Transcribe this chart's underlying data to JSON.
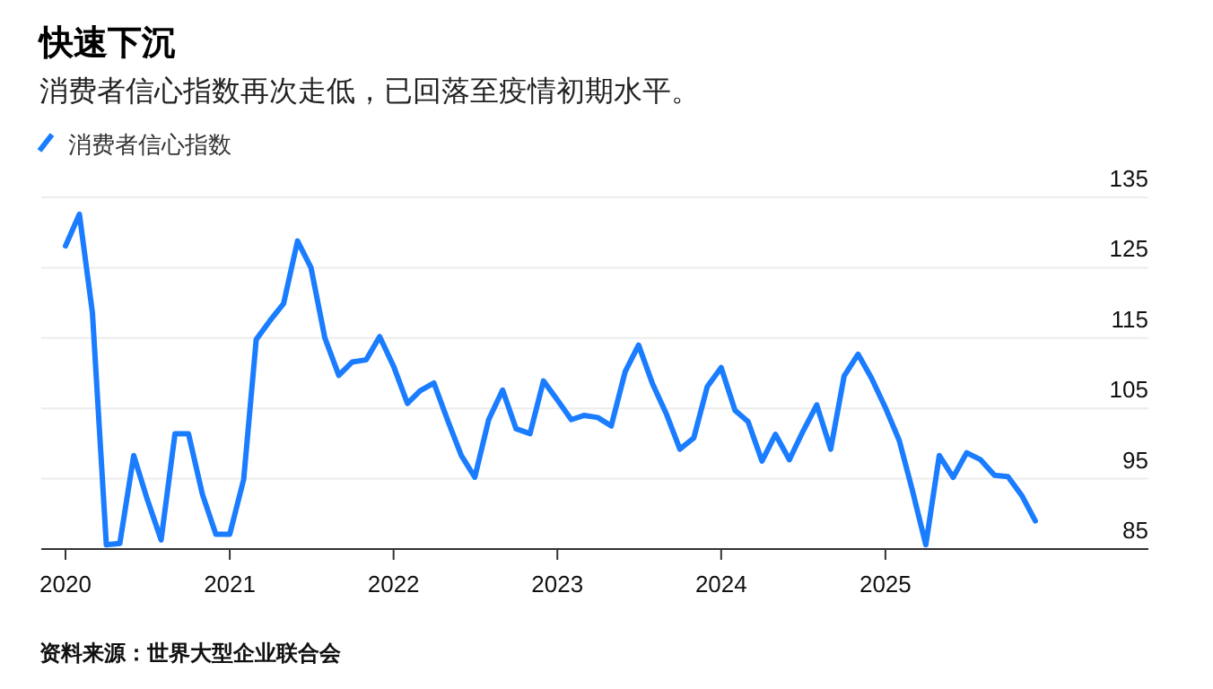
{
  "chart_data": {
    "type": "line",
    "title": "快速下沉",
    "subtitle": "消费者信心指数再次走低，已回落至疫情初期水平。",
    "x": [
      "2020-01",
      "2020-02",
      "2020-03",
      "2020-04",
      "2020-05",
      "2020-06",
      "2020-07",
      "2020-08",
      "2020-09",
      "2020-10",
      "2020-11",
      "2020-12",
      "2021-01",
      "2021-02",
      "2021-03",
      "2021-04",
      "2021-05",
      "2021-06",
      "2021-07",
      "2021-08",
      "2021-09",
      "2021-10",
      "2021-11",
      "2021-12",
      "2022-01",
      "2022-02",
      "2022-03",
      "2022-04",
      "2022-05",
      "2022-06",
      "2022-07",
      "2022-08",
      "2022-09",
      "2022-10",
      "2022-11",
      "2022-12",
      "2023-01",
      "2023-02",
      "2023-03",
      "2023-04",
      "2023-05",
      "2023-06",
      "2023-07",
      "2023-08",
      "2023-09",
      "2023-10",
      "2023-11",
      "2023-12",
      "2024-01",
      "2024-02",
      "2024-03",
      "2024-04",
      "2024-05",
      "2024-06",
      "2024-07",
      "2024-08",
      "2024-09",
      "2024-10",
      "2024-11",
      "2024-12",
      "2025-01",
      "2025-02",
      "2025-03",
      "2025-04",
      "2025-05",
      "2025-06",
      "2025-07",
      "2025-08",
      "2025-09",
      "2025-10",
      "2025-11",
      "2025-12"
    ],
    "series": [
      {
        "name": "消费者信心指数",
        "color": "#1a7cff",
        "values": [
          128.1,
          132.6,
          118.6,
          85.6,
          85.8,
          98.3,
          92.1,
          86.3,
          101.4,
          101.4,
          92.8,
          87.1,
          87.1,
          94.9,
          114.8,
          117.5,
          119.9,
          128.8,
          125.0,
          115.0,
          109.7,
          111.6,
          111.9,
          115.2,
          111.0,
          105.7,
          107.5,
          108.6,
          103.4,
          98.3,
          95.2,
          103.4,
          107.6,
          102.1,
          101.4,
          108.9,
          106.2,
          103.4,
          104.0,
          103.7,
          102.5,
          110.2,
          114.0,
          108.5,
          104.2,
          99.2,
          100.8,
          108.1,
          110.8,
          104.7,
          103.1,
          97.5,
          101.3,
          97.7,
          101.7,
          105.5,
          99.2,
          109.6,
          112.7,
          109.3,
          105.1,
          100.4,
          93.6,
          85.6,
          98.3,
          95.2,
          98.7,
          97.7,
          95.5,
          95.3,
          92.6,
          89.0
        ]
      }
    ],
    "xlim": [
      "2019-11-08",
      "2026-08-10"
    ],
    "xticks": [
      {
        "value": "2020-01",
        "label": "2020"
      },
      {
        "value": "2021-01",
        "label": "2021"
      },
      {
        "value": "2022-01",
        "label": "2022"
      },
      {
        "value": "2023-01",
        "label": "2023"
      },
      {
        "value": "2024-01",
        "label": "2024"
      },
      {
        "value": "2025-01",
        "label": "2025"
      }
    ],
    "ylim": [
      85,
      135
    ],
    "yticks": [
      85,
      95,
      105,
      115,
      125,
      135
    ],
    "grid": "y",
    "legend": "top left",
    "marker": "none",
    "line_style": "solid",
    "annotations": [
      "资料来源：世界大型企业联合会"
    ]
  }
}
